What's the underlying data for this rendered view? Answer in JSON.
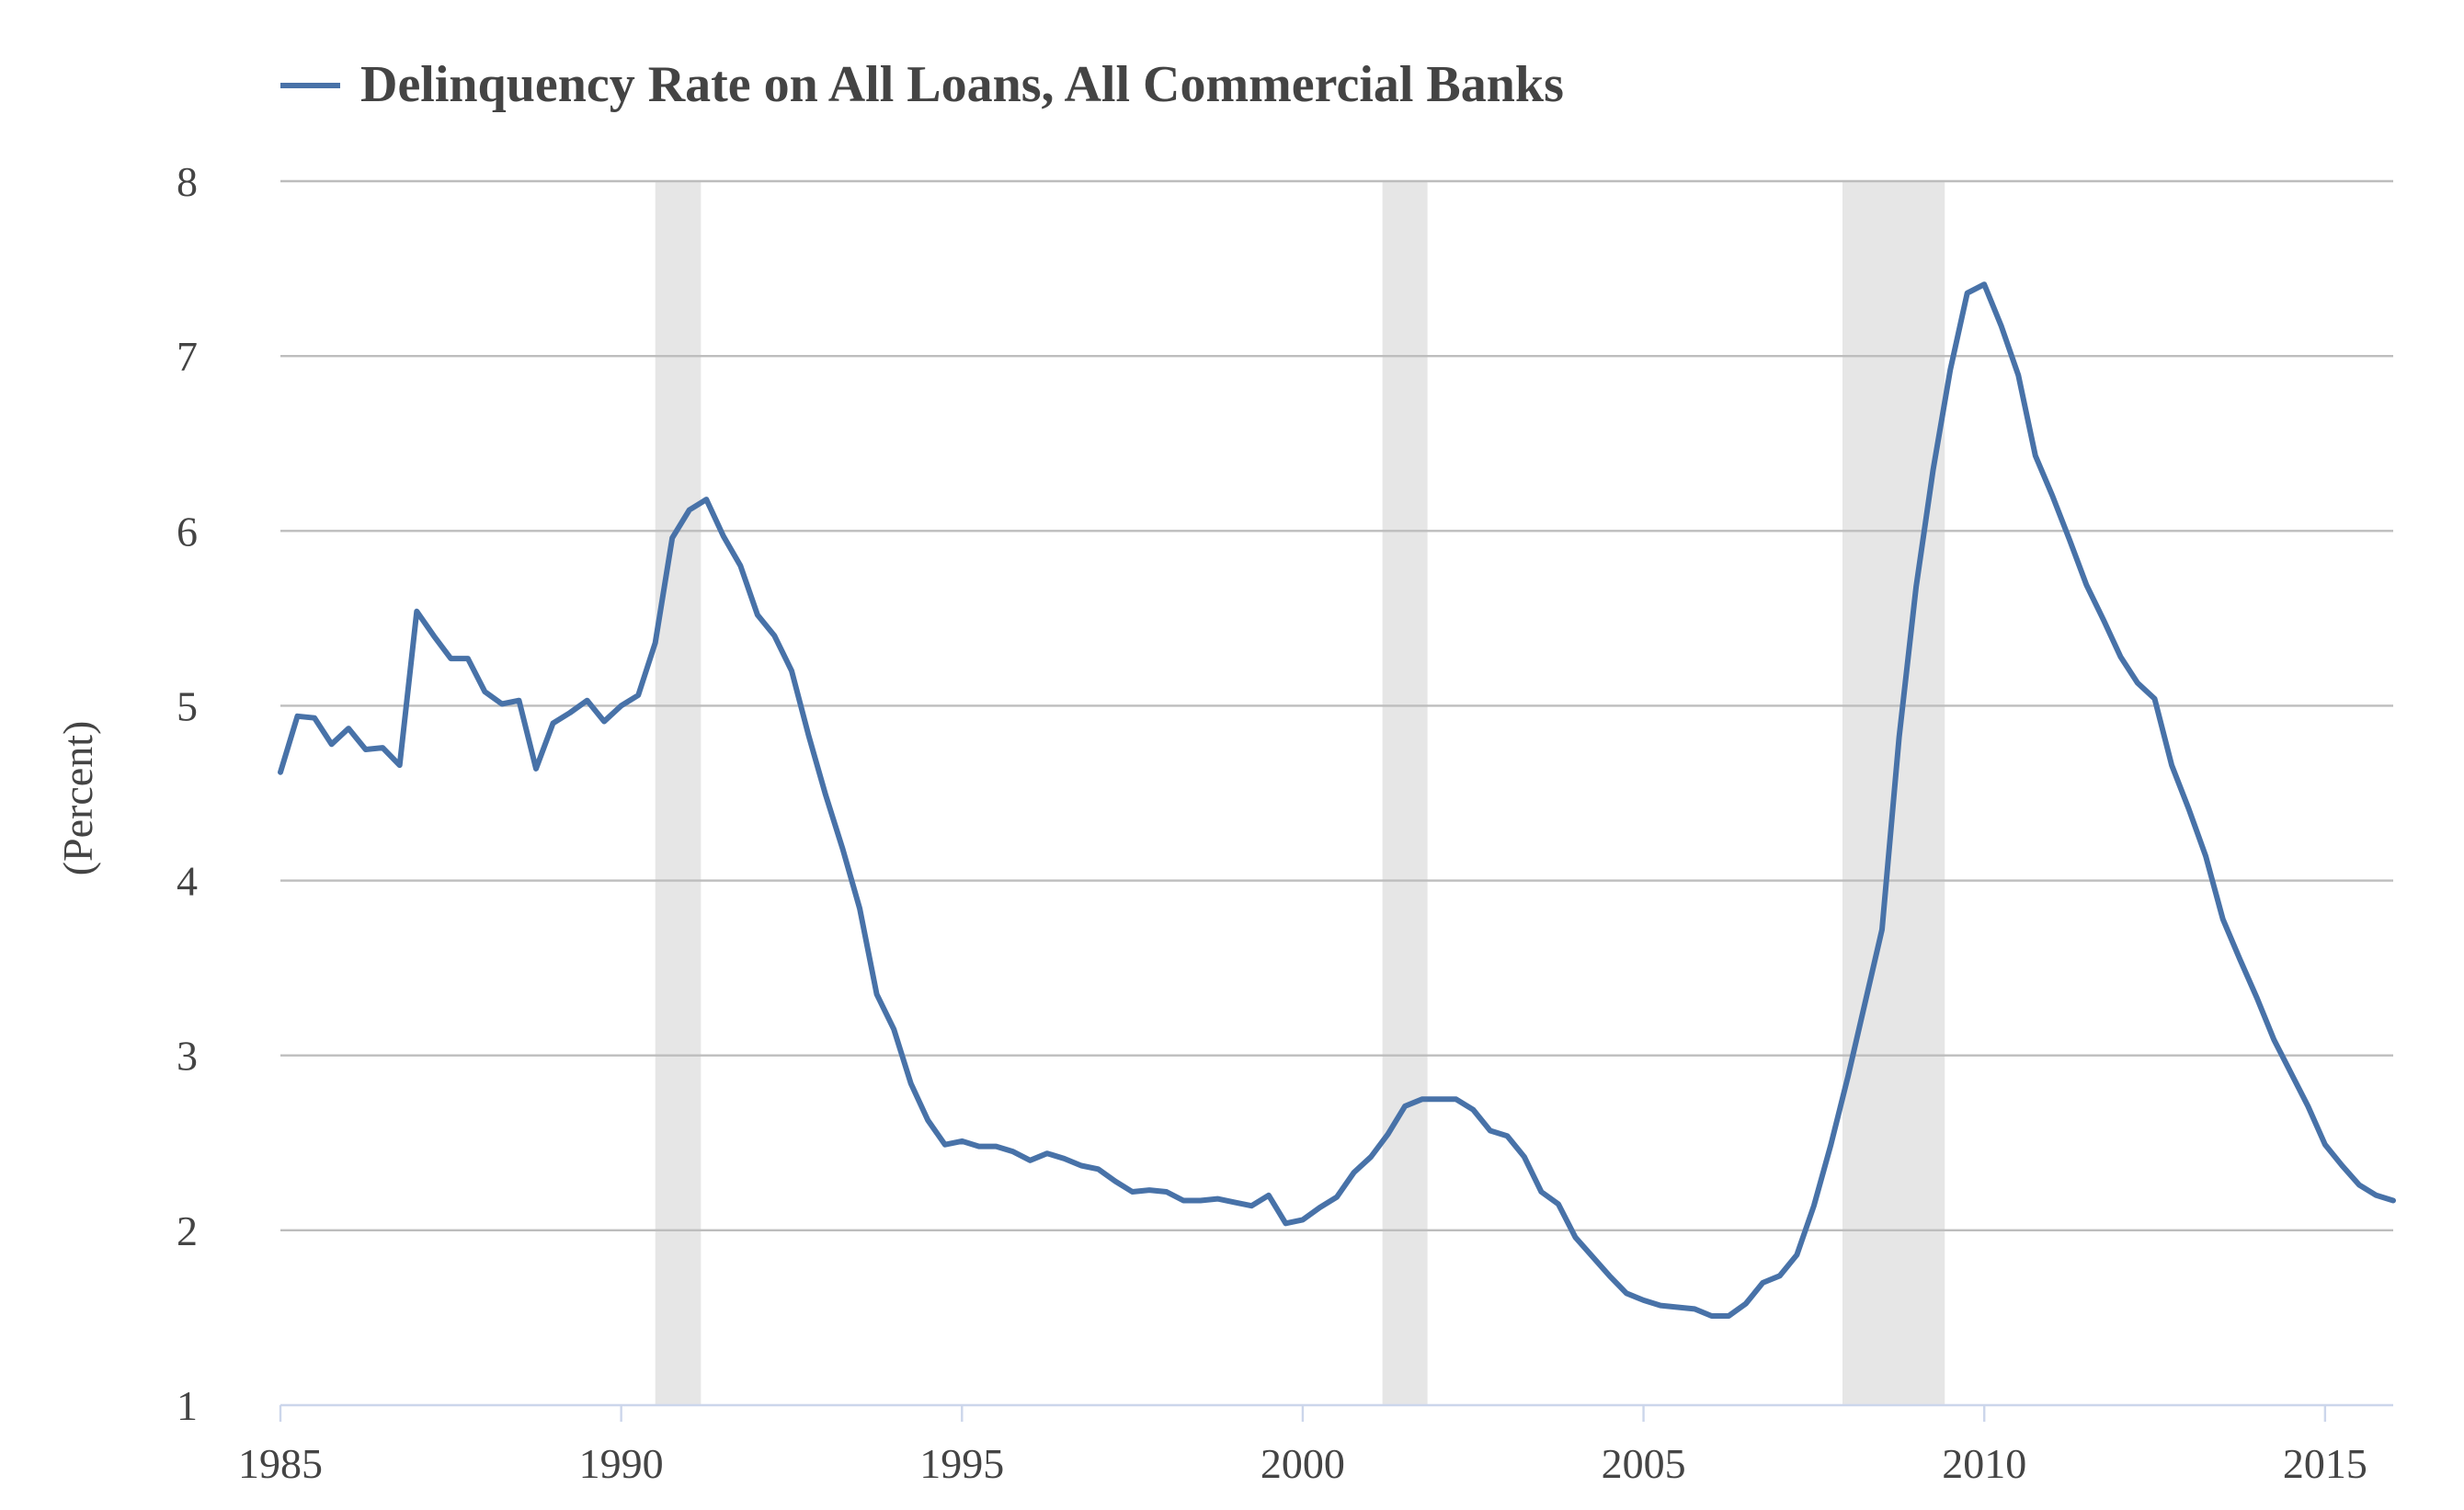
{
  "chart_data": {
    "type": "line",
    "ylabel": "(Percent)",
    "xlabel": "",
    "xlim": [
      1985.0,
      2016.0
    ],
    "ylim": [
      1,
      8
    ],
    "y_ticks": [
      1,
      2,
      3,
      4,
      5,
      6,
      7,
      8
    ],
    "x_ticks": [
      1985,
      1990,
      1995,
      2000,
      2005,
      2010,
      2015
    ],
    "grid": "horizontal",
    "legend_position": "top-left",
    "colors": {
      "series": "#4872a8",
      "recession": "#e6e6e6",
      "grid": "#bdbdbd",
      "text": "#444444"
    },
    "recessions": [
      [
        1990.5,
        1991.17
      ],
      [
        2001.17,
        2001.83
      ],
      [
        2007.92,
        2009.42
      ]
    ],
    "series": [
      {
        "name": "Delinquency Rate on All Loans, All Commercial Banks",
        "x": [
          1985.0,
          1985.25,
          1985.5,
          1985.75,
          1986.0,
          1986.25,
          1986.5,
          1986.75,
          1987.0,
          1987.25,
          1987.5,
          1987.75,
          1988.0,
          1988.25,
          1988.5,
          1988.75,
          1989.0,
          1989.25,
          1989.5,
          1989.75,
          1990.0,
          1990.25,
          1990.5,
          1990.75,
          1991.0,
          1991.25,
          1991.5,
          1991.75,
          1992.0,
          1992.25,
          1992.5,
          1992.75,
          1993.0,
          1993.25,
          1993.5,
          1993.75,
          1994.0,
          1994.25,
          1994.5,
          1994.75,
          1995.0,
          1995.25,
          1995.5,
          1995.75,
          1996.0,
          1996.25,
          1996.5,
          1996.75,
          1997.0,
          1997.25,
          1997.5,
          1997.75,
          1998.0,
          1998.25,
          1998.5,
          1998.75,
          1999.0,
          1999.25,
          1999.5,
          1999.75,
          2000.0,
          2000.25,
          2000.5,
          2000.75,
          2001.0,
          2001.25,
          2001.5,
          2001.75,
          2002.0,
          2002.25,
          2002.5,
          2002.75,
          2003.0,
          2003.25,
          2003.5,
          2003.75,
          2004.0,
          2004.25,
          2004.5,
          2004.75,
          2005.0,
          2005.25,
          2005.5,
          2005.75,
          2006.0,
          2006.25,
          2006.5,
          2006.75,
          2007.0,
          2007.25,
          2007.5,
          2007.75,
          2008.0,
          2008.25,
          2008.5,
          2008.75,
          2009.0,
          2009.25,
          2009.5,
          2009.75,
          2010.0,
          2010.25,
          2010.5,
          2010.75,
          2011.0,
          2011.25,
          2011.5,
          2011.75,
          2012.0,
          2012.25,
          2012.5,
          2012.75,
          2013.0,
          2013.25,
          2013.5,
          2013.75,
          2014.0,
          2014.25,
          2014.5,
          2014.75,
          2015.0,
          2015.25,
          2015.5,
          2015.75,
          2016.0
        ],
        "values": [
          4.62,
          4.94,
          4.93,
          4.78,
          4.87,
          4.75,
          4.76,
          4.66,
          5.54,
          5.4,
          5.27,
          5.27,
          5.08,
          5.01,
          5.03,
          4.64,
          4.9,
          4.96,
          5.03,
          4.91,
          5.0,
          5.06,
          5.36,
          5.96,
          6.12,
          6.18,
          5.97,
          5.8,
          5.52,
          5.4,
          5.2,
          4.83,
          4.49,
          4.18,
          3.84,
          3.35,
          3.15,
          2.84,
          2.63,
          2.49,
          2.51,
          2.48,
          2.48,
          2.45,
          2.4,
          2.44,
          2.41,
          2.37,
          2.35,
          2.28,
          2.22,
          2.23,
          2.22,
          2.17,
          2.17,
          2.18,
          2.16,
          2.14,
          2.2,
          2.04,
          2.06,
          2.13,
          2.19,
          2.33,
          2.42,
          2.55,
          2.71,
          2.75,
          2.75,
          2.75,
          2.69,
          2.57,
          2.54,
          2.42,
          2.22,
          2.15,
          1.96,
          1.85,
          1.74,
          1.64,
          1.6,
          1.57,
          1.56,
          1.55,
          1.51,
          1.51,
          1.58,
          1.7,
          1.74,
          1.86,
          2.14,
          2.49,
          2.88,
          3.3,
          3.72,
          4.82,
          5.68,
          6.35,
          6.92,
          7.36,
          7.41,
          7.17,
          6.89,
          6.43,
          6.2,
          5.95,
          5.69,
          5.49,
          5.28,
          5.13,
          5.04,
          4.66,
          4.41,
          4.14,
          3.78,
          3.55,
          3.33,
          3.09,
          2.9,
          2.71,
          2.49,
          2.37,
          2.26,
          2.2,
          2.17
        ]
      }
    ]
  }
}
